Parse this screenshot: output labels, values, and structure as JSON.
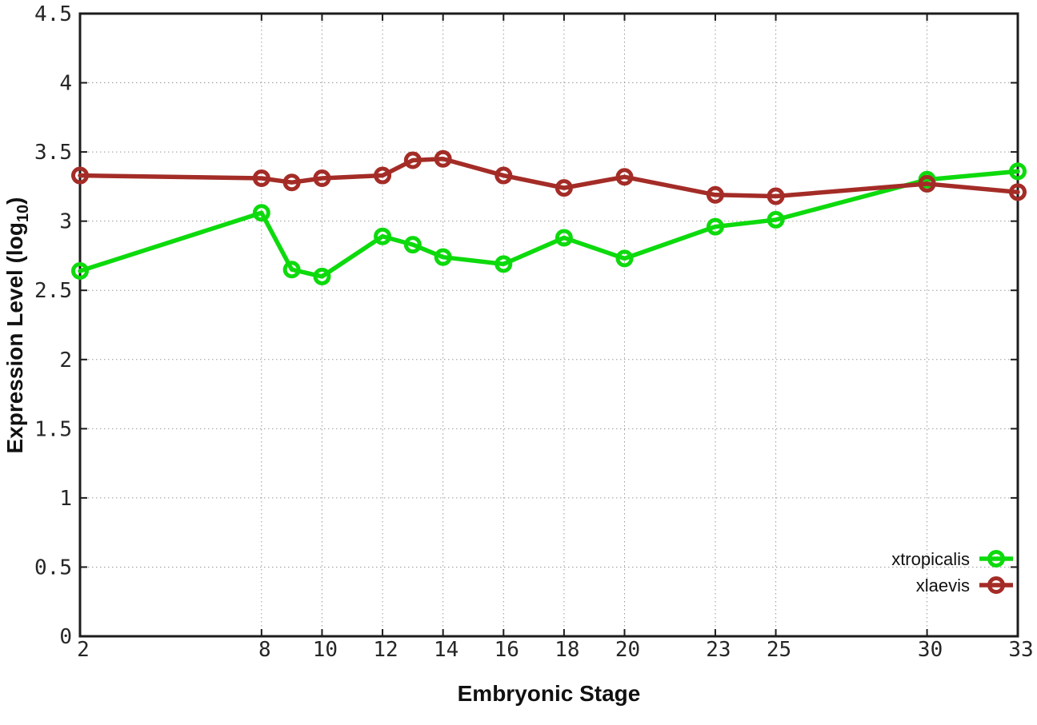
{
  "chart_data": {
    "type": "line",
    "title": "",
    "xlabel": "Embryonic Stage",
    "ylabel": "Expression Level (log10)",
    "ylabel_parts": {
      "prefix": "Expression Level (log",
      "sub": "10",
      "suffix": ")"
    },
    "xlim": [
      2,
      33
    ],
    "ylim": [
      0,
      4.5
    ],
    "grid": true,
    "legend_position": "bottom-right",
    "xticks": [
      2,
      8,
      10,
      12,
      14,
      16,
      18,
      20,
      23,
      25,
      30,
      33
    ],
    "xtick_labels": [
      "2",
      "8",
      "10",
      "12",
      "14",
      "16",
      "18",
      "20",
      "23",
      "25",
      "30",
      "33"
    ],
    "yticks": [
      0,
      0.5,
      1,
      1.5,
      2,
      2.5,
      3,
      3.5,
      4,
      4.5
    ],
    "ytick_labels": [
      "0",
      "0.5",
      "1",
      "1.5",
      "2",
      "2.5",
      "3",
      "3.5",
      "4",
      "4.5"
    ],
    "x": [
      2,
      8,
      9,
      10,
      12,
      13,
      14,
      16,
      18,
      20,
      23,
      25,
      30,
      33
    ],
    "series": [
      {
        "name": "xtropicalis",
        "color": "#0dda0d",
        "values": [
          2.64,
          3.06,
          2.65,
          2.6,
          2.89,
          2.83,
          2.74,
          2.69,
          2.88,
          2.73,
          2.96,
          3.01,
          3.3,
          3.36
        ]
      },
      {
        "name": "xlaevis",
        "color": "#a42c27",
        "values": [
          3.33,
          3.31,
          3.28,
          3.31,
          3.33,
          3.44,
          3.45,
          3.33,
          3.24,
          3.32,
          3.19,
          3.18,
          3.27,
          3.21
        ]
      }
    ],
    "style": {
      "grid_color": "#9a9a9a",
      "border_color": "#1c1c1c",
      "background": "#ffffff"
    }
  }
}
